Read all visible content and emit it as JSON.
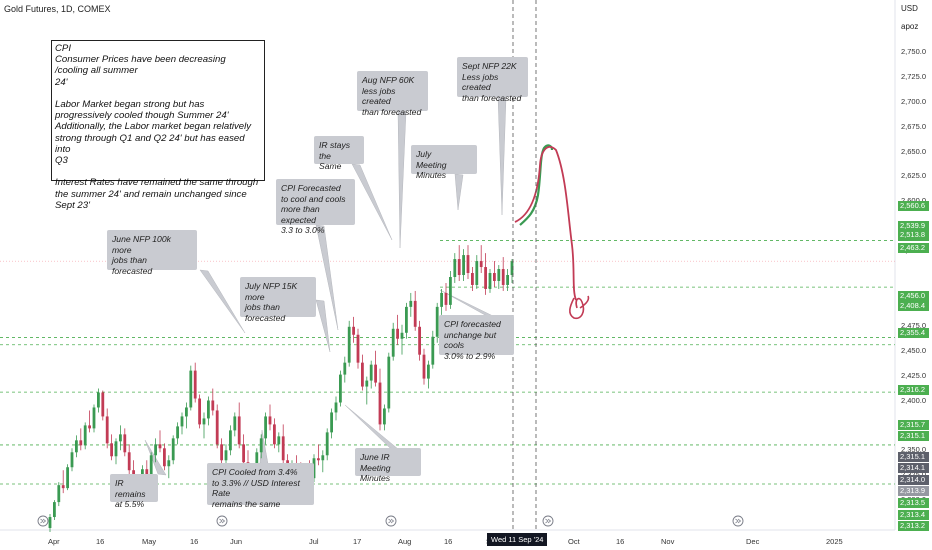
{
  "header": {
    "title": "Gold Futures, 1D, COMEX",
    "currency": "USD",
    "user": "apoz"
  },
  "colors": {
    "up": "#3a9a52",
    "down": "#c23b55",
    "level": "#4caf50",
    "badge_green": "#4caf50",
    "badge_dark": "#5d606b",
    "badge_gray": "#9598a1",
    "note_bg": "#c9cbd1"
  },
  "cpi_box": {
    "text": "CPI\nConsumer Prices have been decreasing\n/cooling all summer\n24'\n\nLabor Market began strong but has\nprogressively cooled though Summer 24'\nAdditionally, the Labor market began relatively\nstrong through Q1 and Q2 24' but has eased into\nQ3\n\nInterest Rates have remained the same through\nthe summer 24' and remain unchanged since Sept 23'"
  },
  "notes": [
    {
      "id": "june-nfp",
      "text": "June NFP 100k more\njobs than\nforecasted"
    },
    {
      "id": "ir-remains",
      "text": "IR remains\nat 5.5%"
    },
    {
      "id": "cpi-cooled",
      "text": "CPI Cooled from 3.4%\nto 3.3% // USD Interest Rate\nremains the same"
    },
    {
      "id": "july-nfp",
      "text": "July NFP 15K more\njobs than\nforecasted"
    },
    {
      "id": "cpi-forecasted",
      "text": "CPI Forecasted\nto cool and cools\nmore than expected\n3.3 to 3.0%"
    },
    {
      "id": "ir-stays",
      "text": "IR stays\nthe\nSame"
    },
    {
      "id": "june-ir",
      "text": "June IR\nMeeting Minutes"
    },
    {
      "id": "aug-nfp",
      "text": "Aug NFP 60K\nless jobs created\nthan forecasted"
    },
    {
      "id": "july-mm",
      "text": "July\nMeeting Minutes"
    },
    {
      "id": "sept-nfp",
      "text": "Sept NFP 22K\nLess jobs created\nthan forecasted"
    },
    {
      "id": "cpi-forecast-2",
      "text": "CPI forecasted\nunchange but cools\n3.0% to 2.9%"
    }
  ],
  "date_badge": "Wed 11 Sep '24",
  "price_badges": [
    {
      "text": "2,560.6",
      "kind": "green"
    },
    {
      "text": "2,539.9",
      "kind": "green"
    },
    {
      "text": "05:35:31",
      "kind": "green"
    },
    {
      "text": "2,513.8",
      "kind": "green"
    },
    {
      "text": "2,463.2",
      "kind": "green"
    },
    {
      "text": "2,456.0",
      "kind": "green"
    },
    {
      "text": "2,408.4",
      "kind": "green"
    },
    {
      "text": "2,355.4",
      "kind": "green"
    },
    {
      "text": "2,316.2",
      "kind": "green"
    },
    {
      "text": "2,315.7",
      "kind": "green"
    },
    {
      "text": "2,315.1",
      "kind": "green"
    },
    {
      "text": "2,315.1",
      "kind": "dark"
    },
    {
      "text": "2,314.1",
      "kind": "dark"
    },
    {
      "text": "2,314.0",
      "kind": "dark"
    },
    {
      "text": "2,313.9",
      "kind": "gray"
    },
    {
      "text": "2,313.5",
      "kind": "green"
    },
    {
      "text": "2,313.4",
      "kind": "green"
    },
    {
      "text": "2,313.2",
      "kind": "green"
    }
  ],
  "chart_data": {
    "type": "candlestick",
    "title": "Gold Futures, 1D, COMEX",
    "ylim": [
      2275,
      2775
    ],
    "y_ticks": [
      "2,750.0",
      "2,725.0",
      "2,700.0",
      "2,675.0",
      "2,650.0",
      "2,625.0",
      "2,600.0",
      "2,575.0",
      "2,550.0",
      "2,500.0",
      "2,475.0",
      "2,450.0",
      "2,425.0",
      "2,400.0",
      "2,375.0",
      "2,350.0",
      "2,325.0",
      "2,300.0"
    ],
    "x_ticks": [
      "Apr",
      "16",
      "May",
      "16",
      "Jun",
      "Jul",
      "17",
      "Aug",
      "16",
      "S",
      "Oct",
      "16",
      "Nov",
      "Dec",
      "2025"
    ],
    "levels": [
      2560.6,
      2513.8,
      2463.2,
      2456.0,
      2408.4,
      2355.4,
      2316.2
    ],
    "last_price": 2539.9,
    "candles": [
      [
        2272,
        2286,
        2268,
        2283
      ],
      [
        2283,
        2300,
        2280,
        2298
      ],
      [
        2298,
        2318,
        2294,
        2315
      ],
      [
        2315,
        2330,
        2307,
        2312
      ],
      [
        2312,
        2336,
        2310,
        2333
      ],
      [
        2333,
        2352,
        2329,
        2348
      ],
      [
        2348,
        2365,
        2343,
        2360
      ],
      [
        2360,
        2372,
        2350,
        2355
      ],
      [
        2355,
        2378,
        2351,
        2375
      ],
      [
        2375,
        2390,
        2368,
        2372
      ],
      [
        2372,
        2396,
        2368,
        2393
      ],
      [
        2393,
        2412,
        2388,
        2408
      ],
      [
        2408,
        2410,
        2380,
        2384
      ],
      [
        2384,
        2392,
        2352,
        2357
      ],
      [
        2357,
        2366,
        2340,
        2344
      ],
      [
        2344,
        2362,
        2336,
        2359
      ],
      [
        2359,
        2375,
        2350,
        2366
      ],
      [
        2366,
        2372,
        2344,
        2348
      ],
      [
        2348,
        2356,
        2326,
        2330
      ],
      [
        2330,
        2340,
        2306,
        2310
      ],
      [
        2310,
        2325,
        2302,
        2320
      ],
      [
        2320,
        2335,
        2310,
        2331
      ],
      [
        2331,
        2340,
        2318,
        2322
      ],
      [
        2322,
        2348,
        2318,
        2345
      ],
      [
        2345,
        2362,
        2338,
        2356
      ],
      [
        2356,
        2370,
        2348,
        2352
      ],
      [
        2352,
        2357,
        2330,
        2334
      ],
      [
        2334,
        2345,
        2322,
        2340
      ],
      [
        2340,
        2365,
        2336,
        2362
      ],
      [
        2362,
        2378,
        2356,
        2374
      ],
      [
        2374,
        2388,
        2366,
        2384
      ],
      [
        2384,
        2398,
        2372,
        2393
      ],
      [
        2393,
        2435,
        2390,
        2430
      ],
      [
        2430,
        2438,
        2398,
        2402
      ],
      [
        2402,
        2406,
        2372,
        2376
      ],
      [
        2376,
        2388,
        2362,
        2382
      ],
      [
        2382,
        2404,
        2375,
        2400
      ],
      [
        2400,
        2412,
        2385,
        2390
      ],
      [
        2390,
        2396,
        2352,
        2356
      ],
      [
        2356,
        2362,
        2336,
        2340
      ],
      [
        2340,
        2356,
        2330,
        2350
      ],
      [
        2350,
        2375,
        2345,
        2370
      ],
      [
        2370,
        2388,
        2364,
        2384
      ],
      [
        2384,
        2398,
        2352,
        2356
      ],
      [
        2356,
        2366,
        2334,
        2338
      ],
      [
        2338,
        2350,
        2318,
        2322
      ],
      [
        2322,
        2336,
        2316,
        2330
      ],
      [
        2330,
        2352,
        2322,
        2348
      ],
      [
        2348,
        2366,
        2342,
        2362
      ],
      [
        2362,
        2388,
        2356,
        2384
      ],
      [
        2384,
        2396,
        2370,
        2376
      ],
      [
        2376,
        2382,
        2352,
        2356
      ],
      [
        2356,
        2368,
        2348,
        2364
      ],
      [
        2364,
        2376,
        2336,
        2340
      ],
      [
        2340,
        2346,
        2320,
        2324
      ],
      [
        2324,
        2340,
        2316,
        2336
      ],
      [
        2336,
        2345,
        2322,
        2328
      ],
      [
        2328,
        2338,
        2310,
        2315
      ],
      [
        2315,
        2332,
        2312,
        2328
      ],
      [
        2328,
        2340,
        2318,
        2322
      ],
      [
        2322,
        2346,
        2318,
        2342
      ],
      [
        2342,
        2356,
        2335,
        2340
      ],
      [
        2340,
        2350,
        2328,
        2345
      ],
      [
        2345,
        2372,
        2340,
        2368
      ],
      [
        2368,
        2392,
        2362,
        2388
      ],
      [
        2388,
        2404,
        2380,
        2398
      ],
      [
        2398,
        2430,
        2394,
        2426
      ],
      [
        2426,
        2444,
        2418,
        2438
      ],
      [
        2438,
        2480,
        2434,
        2474
      ],
      [
        2474,
        2484,
        2458,
        2466
      ],
      [
        2466,
        2472,
        2432,
        2438
      ],
      [
        2438,
        2446,
        2410,
        2414
      ],
      [
        2414,
        2424,
        2396,
        2420
      ],
      [
        2420,
        2440,
        2412,
        2436
      ],
      [
        2436,
        2450,
        2414,
        2418
      ],
      [
        2418,
        2432,
        2370,
        2376
      ],
      [
        2376,
        2396,
        2370,
        2392
      ],
      [
        2392,
        2448,
        2388,
        2444
      ],
      [
        2444,
        2478,
        2440,
        2472
      ],
      [
        2472,
        2486,
        2456,
        2462
      ],
      [
        2462,
        2476,
        2446,
        2468
      ],
      [
        2468,
        2498,
        2462,
        2494
      ],
      [
        2494,
        2508,
        2484,
        2500
      ],
      [
        2500,
        2510,
        2470,
        2474
      ],
      [
        2474,
        2480,
        2440,
        2446
      ],
      [
        2446,
        2452,
        2416,
        2422
      ],
      [
        2422,
        2440,
        2412,
        2436
      ],
      [
        2436,
        2470,
        2432,
        2464
      ],
      [
        2464,
        2498,
        2458,
        2494
      ],
      [
        2494,
        2512,
        2486,
        2508
      ],
      [
        2508,
        2518,
        2490,
        2496
      ],
      [
        2496,
        2530,
        2492,
        2524
      ],
      [
        2524,
        2548,
        2518,
        2542
      ],
      [
        2542,
        2556,
        2520,
        2526
      ],
      [
        2526,
        2552,
        2520,
        2546
      ],
      [
        2546,
        2556,
        2522,
        2528
      ],
      [
        2528,
        2534,
        2510,
        2516
      ],
      [
        2516,
        2546,
        2512,
        2540
      ],
      [
        2540,
        2556,
        2528,
        2534
      ],
      [
        2534,
        2548,
        2506,
        2512
      ],
      [
        2512,
        2532,
        2508,
        2528
      ],
      [
        2528,
        2540,
        2514,
        2520
      ],
      [
        2520,
        2536,
        2512,
        2532
      ],
      [
        2532,
        2544,
        2510,
        2516
      ],
      [
        2516,
        2532,
        2510,
        2526
      ],
      [
        2526,
        2542,
        2518,
        2539.9
      ]
    ],
    "projection_up": [
      [
        2530,
        2528
      ],
      [
        2545,
        2556
      ],
      [
        2585,
        2610
      ],
      [
        2620,
        2625
      ],
      [
        2628,
        2630
      ],
      [
        2626,
        2612
      ]
    ],
    "projection_down": [
      [
        2610,
        2580
      ],
      [
        2560,
        2520
      ],
      [
        2500,
        2480
      ],
      [
        2470,
        2458
      ],
      [
        2450,
        2445
      ],
      [
        2455,
        2460
      ]
    ]
  }
}
